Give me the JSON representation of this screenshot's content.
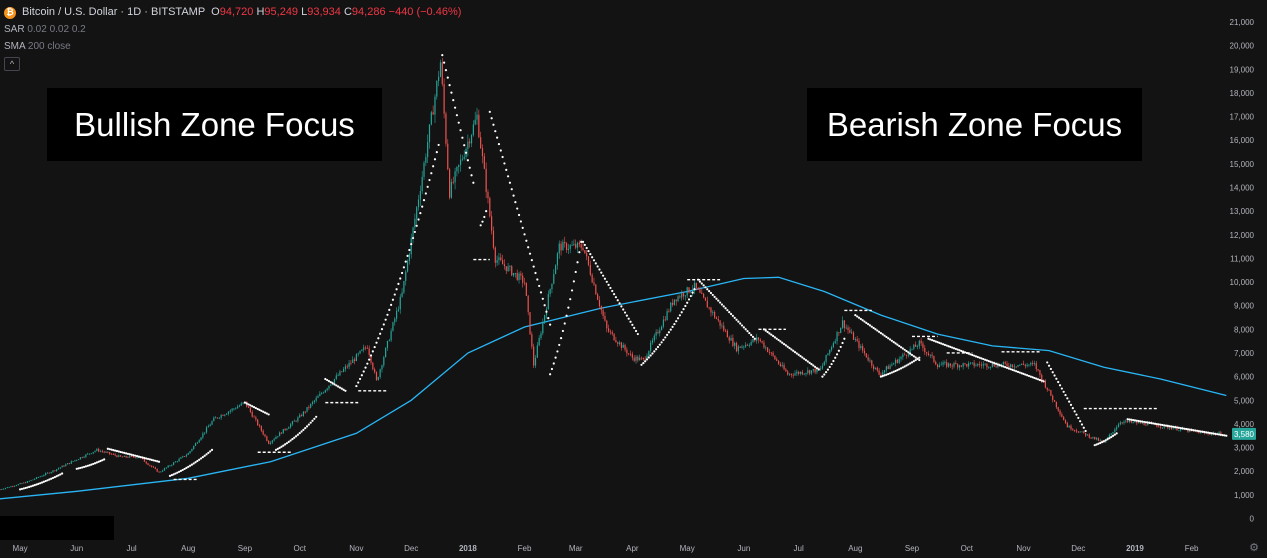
{
  "header": {
    "symbol": "Bitcoin / U.S. Dollar · 1D · BITSTAMP",
    "open_label": "O",
    "open": "94,720",
    "high_label": "H",
    "high": "95,249",
    "low_label": "L",
    "low": "93,934",
    "close_label": "C",
    "close": "94,286",
    "change": "−440 (−0.46%)",
    "sar_label": "SAR",
    "sar_params": "0.02 0.02 0.2",
    "sma_label": "SMA",
    "sma_params": "200 close",
    "collapse_glyph": "^"
  },
  "annotations": {
    "bull": "Bullish Zone Focus",
    "bear": "Bearish Zone Focus"
  },
  "colors": {
    "bg": "#131313",
    "up": "#26a69a",
    "down": "#ef5350",
    "sma": "#29b6f6",
    "sar": "#ffffff",
    "axis_text": "#b2b5be",
    "last_price": "#26a69a"
  },
  "chart_data": {
    "type": "candlestick",
    "title": "Bitcoin / U.S. Dollar · 1D · BITSTAMP",
    "ylim": [
      -150,
      21000
    ],
    "y_ticks": [
      "0",
      "1,000",
      "2,000",
      "3,000",
      "4,000",
      "5,000",
      "6,000",
      "7,000",
      "8,000",
      "9,000",
      "10,000",
      "11,000",
      "12,000",
      "13,000",
      "14,000",
      "15,000",
      "16,000",
      "17,000",
      "18,000",
      "19,000",
      "20,000",
      "21,000"
    ],
    "x_ticks": [
      "May",
      "Jun",
      "Jul",
      "Aug",
      "Sep",
      "Oct",
      "Nov",
      "Dec",
      "2018",
      "Feb",
      "Mar",
      "Apr",
      "May",
      "Jun",
      "Jul",
      "Aug",
      "Sep",
      "Oct",
      "Nov",
      "Dec",
      "2019",
      "Feb"
    ],
    "last_price_label": "3,580",
    "price_path": [
      [
        "2017-04-20",
        1230
      ],
      [
        "2017-05-05",
        1550
      ],
      [
        "2017-05-20",
        2050
      ],
      [
        "2017-06-05",
        2650
      ],
      [
        "2017-06-12",
        2900
      ],
      [
        "2017-06-25",
        2600
      ],
      [
        "2017-07-05",
        2600
      ],
      [
        "2017-07-16",
        1950
      ],
      [
        "2017-08-01",
        2750
      ],
      [
        "2017-08-15",
        4200
      ],
      [
        "2017-09-01",
        4900
      ],
      [
        "2017-09-14",
        3200
      ],
      [
        "2017-10-01",
        4300
      ],
      [
        "2017-10-20",
        5900
      ],
      [
        "2017-11-07",
        7300
      ],
      [
        "2017-11-12",
        5800
      ],
      [
        "2017-11-26",
        9500
      ],
      [
        "2017-12-07",
        14500
      ],
      [
        "2017-12-17",
        19300
      ],
      [
        "2017-12-22",
        13800
      ],
      [
        "2018-01-06",
        17000
      ],
      [
        "2018-01-16",
        11000
      ],
      [
        "2018-02-01",
        10000
      ],
      [
        "2018-02-06",
        6500
      ],
      [
        "2018-02-20",
        11500
      ],
      [
        "2018-03-05",
        11500
      ],
      [
        "2018-03-18",
        8000
      ],
      [
        "2018-04-01",
        6800
      ],
      [
        "2018-04-07",
        6700
      ],
      [
        "2018-04-24",
        9300
      ],
      [
        "2018-05-05",
        9800
      ],
      [
        "2018-05-28",
        7200
      ],
      [
        "2018-06-09",
        7600
      ],
      [
        "2018-06-25",
        6100
      ],
      [
        "2018-07-13",
        6300
      ],
      [
        "2018-07-25",
        8300
      ],
      [
        "2018-08-14",
        6100
      ],
      [
        "2018-09-05",
        7400
      ],
      [
        "2018-09-15",
        6500
      ],
      [
        "2018-10-15",
        6500
      ],
      [
        "2018-11-07",
        6500
      ],
      [
        "2018-11-25",
        3900
      ],
      [
        "2018-12-15",
        3200
      ],
      [
        "2018-12-24",
        4100
      ],
      [
        "2019-01-08",
        4000
      ],
      [
        "2019-02-08",
        3600
      ],
      [
        "2019-02-18",
        3580
      ]
    ],
    "sma200_path": [
      [
        "2017-04-20",
        830
      ],
      [
        "2017-06-01",
        1150
      ],
      [
        "2017-08-01",
        1700
      ],
      [
        "2017-09-15",
        2400
      ],
      [
        "2017-11-01",
        3600
      ],
      [
        "2017-12-01",
        5000
      ],
      [
        "2018-01-01",
        7000
      ],
      [
        "2018-02-01",
        8100
      ],
      [
        "2018-03-15",
        8900
      ],
      [
        "2018-05-01",
        9600
      ],
      [
        "2018-06-01",
        10150
      ],
      [
        "2018-06-20",
        10200
      ],
      [
        "2018-07-15",
        9600
      ],
      [
        "2018-08-15",
        8600
      ],
      [
        "2018-09-15",
        7800
      ],
      [
        "2018-10-15",
        7300
      ],
      [
        "2018-11-15",
        7100
      ],
      [
        "2018-12-15",
        6400
      ],
      [
        "2019-01-15",
        5900
      ],
      [
        "2019-02-20",
        5200
      ]
    ],
    "sar_segments": [
      {
        "side": "below",
        "from": [
          "2017-05-01",
          1230
        ],
        "to": [
          "2017-05-24",
          1900
        ]
      },
      {
        "side": "below",
        "from": [
          "2017-06-01",
          2100
        ],
        "to": [
          "2017-06-16",
          2500
        ]
      },
      {
        "side": "above",
        "from": [
          "2017-06-18",
          2950
        ],
        "to": [
          "2017-07-16",
          2400
        ]
      },
      {
        "side": "below",
        "from": [
          "2017-07-22",
          1800
        ],
        "to": [
          "2017-08-14",
          2900
        ]
      },
      {
        "side": "above",
        "from": [
          "2017-09-01",
          4900
        ],
        "to": [
          "2017-09-14",
          4400
        ]
      },
      {
        "side": "below",
        "from": [
          "2017-09-18",
          2900
        ],
        "to": [
          "2017-10-10",
          4300
        ]
      },
      {
        "side": "above",
        "from": [
          "2017-10-15",
          5900
        ],
        "to": [
          "2017-10-26",
          5400
        ]
      },
      {
        "side": "below",
        "from": [
          "2017-11-01",
          5600
        ],
        "to": [
          "2017-12-16",
          15800
        ]
      },
      {
        "side": "above",
        "from": [
          "2017-12-18",
          19600
        ],
        "to": [
          "2018-01-04",
          14200
        ]
      },
      {
        "side": "below",
        "from": [
          "2018-01-08",
          12400
        ],
        "to": [
          "2018-01-11",
          13000
        ]
      },
      {
        "side": "above",
        "from": [
          "2018-01-13",
          17200
        ],
        "to": [
          "2018-02-15",
          8200
        ]
      },
      {
        "side": "below",
        "from": [
          "2018-02-15",
          6100
        ],
        "to": [
          "2018-03-04",
          11700
        ]
      },
      {
        "side": "above",
        "from": [
          "2018-03-05",
          11700
        ],
        "to": [
          "2018-04-04",
          7800
        ]
      },
      {
        "side": "below",
        "from": [
          "2018-04-06",
          6500
        ],
        "to": [
          "2018-05-05",
          9700
        ]
      },
      {
        "side": "above",
        "from": [
          "2018-05-07",
          10100
        ],
        "to": [
          "2018-06-07",
          7600
        ]
      },
      {
        "side": "above",
        "from": [
          "2018-06-12",
          8000
        ],
        "to": [
          "2018-07-12",
          6300
        ]
      },
      {
        "side": "below",
        "from": [
          "2018-07-14",
          6000
        ],
        "to": [
          "2018-07-26",
          7600
        ]
      },
      {
        "side": "above",
        "from": [
          "2018-08-01",
          8600
        ],
        "to": [
          "2018-09-05",
          6700
        ]
      },
      {
        "side": "below",
        "from": [
          "2018-08-15",
          6000
        ],
        "to": [
          "2018-09-05",
          6800
        ]
      },
      {
        "side": "above",
        "from": [
          "2018-09-10",
          7600
        ],
        "to": [
          "2018-11-12",
          5800
        ]
      },
      {
        "side": "above",
        "from": [
          "2018-11-14",
          6600
        ],
        "to": [
          "2018-12-05",
          3700
        ]
      },
      {
        "side": "below",
        "from": [
          "2018-12-10",
          3100
        ],
        "to": [
          "2018-12-22",
          3600
        ]
      },
      {
        "side": "above",
        "from": [
          "2018-12-28",
          4200
        ],
        "to": [
          "2019-02-20",
          3500
        ]
      }
    ],
    "horizontal_levels": [
      {
        "y": 1650,
        "x0": "2017-07-24",
        "x1": "2017-08-06"
      },
      {
        "y": 2800,
        "x0": "2017-09-08",
        "x1": "2017-09-27"
      },
      {
        "y": 4900,
        "x0": "2017-10-15",
        "x1": "2017-11-02"
      },
      {
        "y": 5400,
        "x0": "2017-11-02",
        "x1": "2017-11-18"
      },
      {
        "y": 10950,
        "x0": "2018-01-04",
        "x1": "2018-01-13"
      },
      {
        "y": 10100,
        "x0": "2018-05-01",
        "x1": "2018-05-19"
      },
      {
        "y": 8000,
        "x0": "2018-06-09",
        "x1": "2018-06-24"
      },
      {
        "y": 8800,
        "x0": "2018-07-26",
        "x1": "2018-08-10"
      },
      {
        "y": 7700,
        "x0": "2018-09-01",
        "x1": "2018-09-15"
      },
      {
        "y": 7000,
        "x0": "2018-09-20",
        "x1": "2018-10-04"
      },
      {
        "y": 7050,
        "x0": "2018-10-20",
        "x1": "2018-11-10"
      },
      {
        "y": 4650,
        "x0": "2018-12-04",
        "x1": "2019-01-14"
      }
    ]
  }
}
